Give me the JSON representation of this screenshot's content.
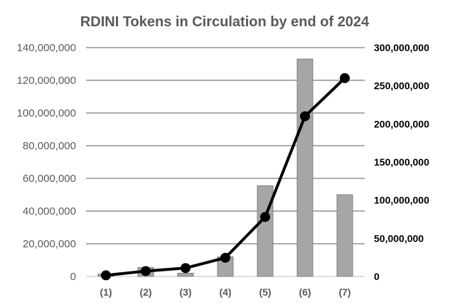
{
  "chart_data": {
    "type": "bar",
    "title": "RDINI Tokens in Circulation  by end of 2024",
    "categories": [
      "(1)",
      "(2)",
      "(3)",
      "(4)",
      "(5)",
      "(6)",
      "(7)"
    ],
    "series": [
      {
        "type": "bar",
        "axis": "left",
        "values": [
          1500000,
          5500000,
          2000000,
          12000000,
          55500000,
          133000000,
          50000000
        ],
        "color": "#a6a6a6"
      },
      {
        "type": "line",
        "axis": "right",
        "values": [
          1500000,
          7000000,
          11000000,
          24500000,
          78000000,
          210000000,
          260000000
        ],
        "color": "#000000"
      }
    ],
    "y_left": {
      "ylim": [
        0,
        140000000
      ],
      "ticks": [
        "0",
        "20,000,000",
        "40,000,000",
        "60,000,000",
        "80,000,000",
        "100,000,000",
        "120,000,000",
        "140,000,000"
      ]
    },
    "y_right": {
      "ylim": [
        0,
        300000000
      ],
      "ticks": [
        "0",
        "50,000,000",
        "100,000,000",
        "150,000,000",
        "200,000,000",
        "250,000,000",
        "300,000,000"
      ]
    },
    "grid": true,
    "legend": "none"
  }
}
